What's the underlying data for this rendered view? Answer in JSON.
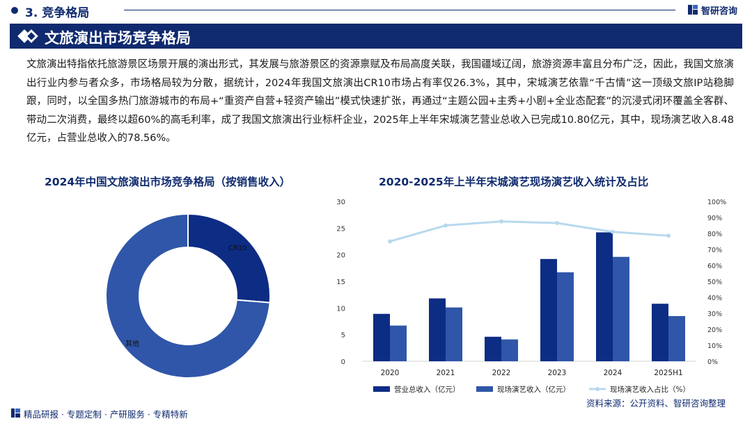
{
  "header": {
    "section_label": "3. 竞争格局",
    "brand": "智研咨询"
  },
  "banner": {
    "title": "文旅演出市场竞争格局"
  },
  "intro_text": "文旅演出特指依托旅游景区场景开展的演出形式，其发展与旅游景区的资源禀赋及布局高度关联，我国疆域辽阔，旅游资源丰富且分布广泛，因此，我国文旅演出行业内参与者众多，市场格局较为分散，据统计，2024年我国文旅演出CR10市场占有率仅26.3%，其中，宋城演艺依靠“千古情”这一顶级文旅IP站稳脚跟，同时，以全国多热门旅游城市的布局+“重资产自营+轻资产输出”模式快速扩张，再通过“主题公园+主秀+小剧+全业态配套”的沉浸式闭环覆盖全客群、带动二次消费，最终以超60%的高毛利率，成了我国文旅演出行业标杆企业，2025年上半年宋城演艺营业总收入已完成10.80亿元，其中，现场演艺收入8.48亿元，占营业总收入的78.56%。",
  "colors": {
    "navy": "#0f2a6e",
    "series_dark": "#0d2c84",
    "series_mid": "#2f56a8",
    "line_light": "#b7d9ee"
  },
  "chart_data": [
    {
      "type": "pie",
      "title": "2024年中国文旅演出市场竞争格局（按销售收入）",
      "donut": true,
      "slices": [
        {
          "label": "CR10",
          "value": 26.3
        },
        {
          "label": "其他",
          "value": 73.7
        }
      ]
    },
    {
      "type": "bar",
      "title": "2020-2025年上半年宋城演艺现场演艺收入统计及占比",
      "categories": [
        "2020",
        "2021",
        "2022",
        "2023",
        "2024",
        "2025H1"
      ],
      "series": [
        {
          "name": "营业总收入（亿元）",
          "kind": "bar",
          "axis": "left",
          "values": [
            8.9,
            11.8,
            4.6,
            19.2,
            24.2,
            10.8
          ]
        },
        {
          "name": "现场演艺收入（亿元）",
          "kind": "bar",
          "axis": "left",
          "values": [
            6.7,
            10.1,
            4.1,
            16.7,
            19.6,
            8.48
          ]
        },
        {
          "name": "现场演艺收入占比（%）",
          "kind": "line",
          "axis": "right",
          "values": [
            75,
            85,
            87.5,
            86.5,
            81,
            78.56
          ]
        }
      ],
      "y_left": {
        "min": 0,
        "max": 30,
        "ticks": [
          0,
          5,
          10,
          15,
          20,
          25,
          30
        ]
      },
      "y_right": {
        "min": 0,
        "max": 100,
        "ticks": [
          "0%",
          "10%",
          "20%",
          "30%",
          "40%",
          "50%",
          "60%",
          "70%",
          "80%",
          "90%",
          "100%"
        ]
      },
      "legend": "bottom",
      "grid": false
    }
  ],
  "footer": {
    "tagline": "精品研报 · 专题定制 · 产研服务 · 专精特新",
    "source": "资料来源：公开资料、智研咨询整理"
  }
}
